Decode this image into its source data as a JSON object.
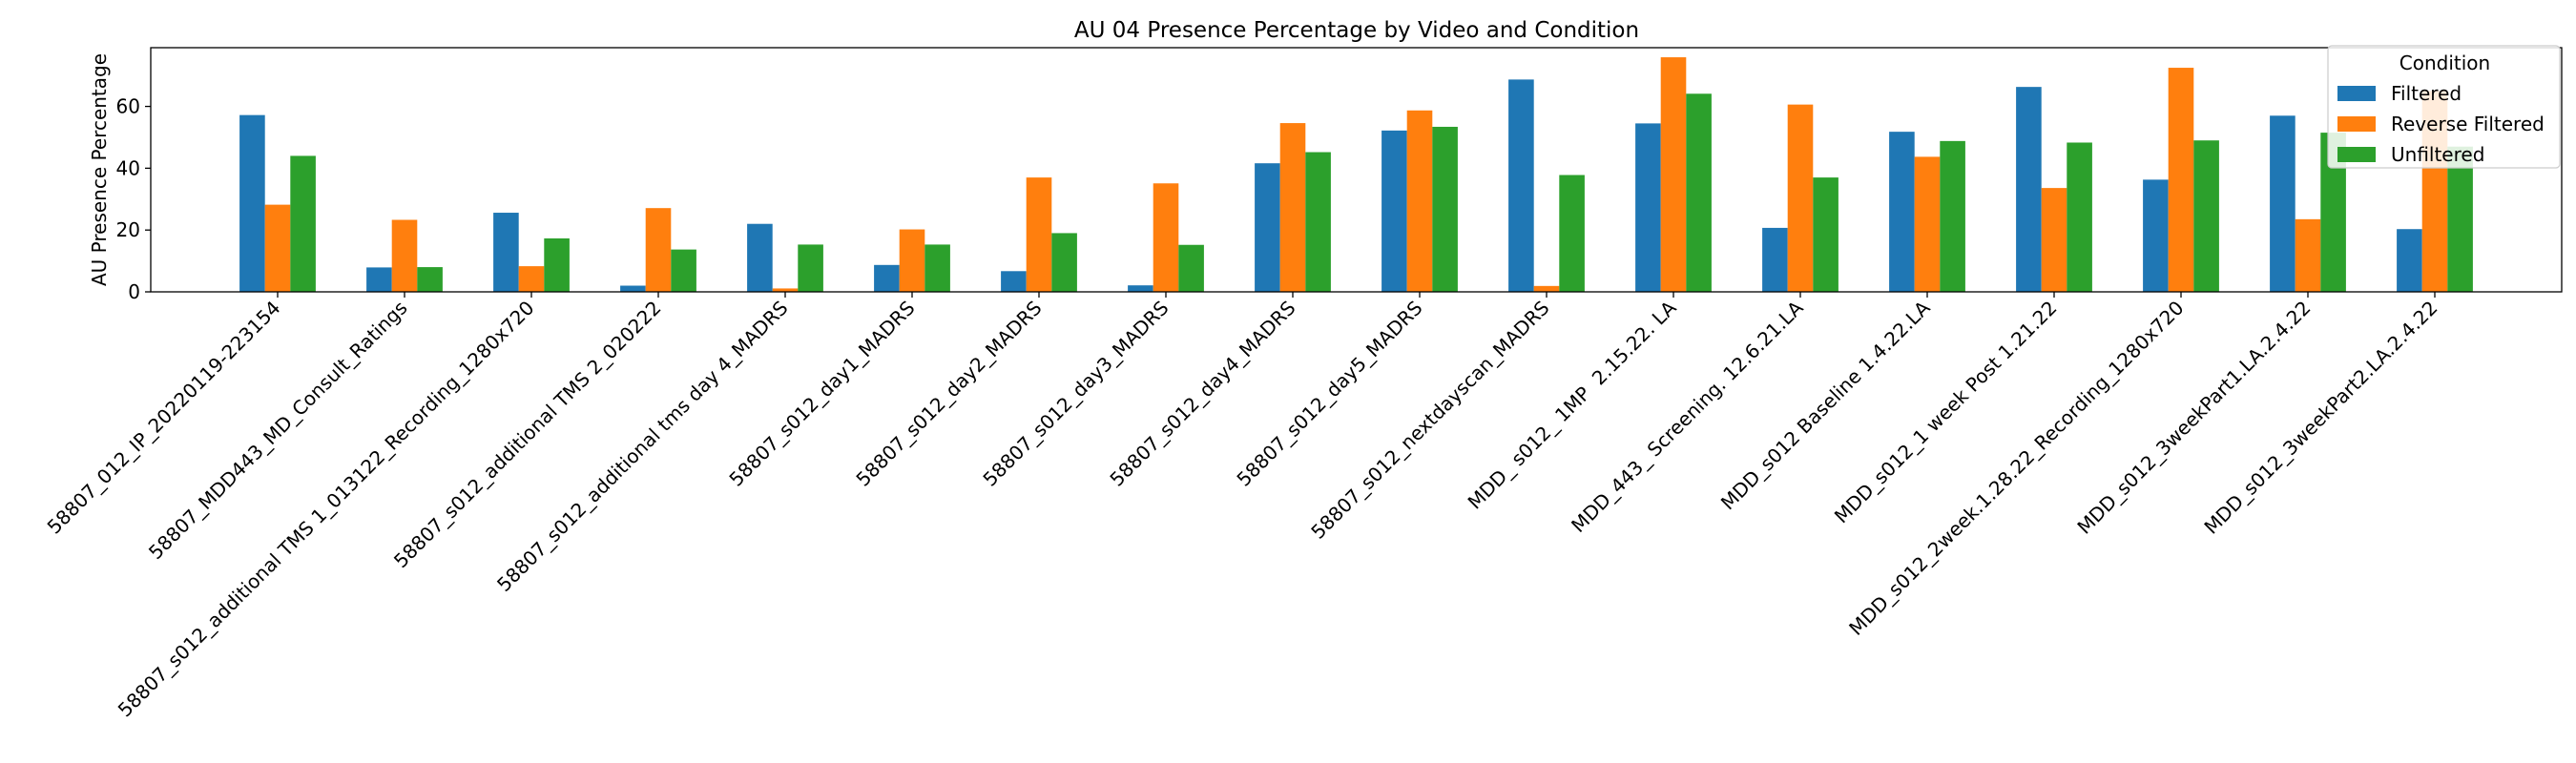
{
  "chart_data": {
    "type": "bar",
    "title": "AU 04 Presence Percentage by Video and Condition",
    "xlabel": "",
    "ylabel": "AU Presence Percentage",
    "ylim": [
      0,
      79
    ],
    "yticks": [
      0,
      20,
      40,
      60
    ],
    "grid": false,
    "legend": {
      "title": "Condition",
      "placement": "top-right"
    },
    "categories": [
      "58807_012_IP_20220119-223154",
      "58807_MDD443_MD_Consult_Ratings",
      "58807_s012_additional TMS 1_013122_Recording_1280x720",
      "58807_s012_additional TMS 2_020222",
      "58807_s012_additional tms day 4_MADRS",
      "58807_s012_day1_MADRS",
      "58807_s012_day2_MADRS",
      "58807_s012_day3_MADRS",
      "58807_s012_day4_MADRS",
      "58807_s012_day5_MADRS",
      "58807_s012_nextdayscan_MADRS",
      "MDD_ s012_ 1MP  2.15.22. LA",
      "MDD_443_ Screening. 12.6.21.LA",
      "MDD_s012 Baseline 1.4.22.LA",
      "MDD_s012_1 week Post 1.21.22",
      "MDD_s012_2week.1.28.22_Recording_1280x720",
      "MDD_s012_3weekPart1.LA.2.4.22",
      "MDD_s012_3weekPart2.LA.2.4.22"
    ],
    "series": [
      {
        "name": "Filtered",
        "color": "#1f77b4",
        "values": [
          57.2,
          7.9,
          25.6,
          2.0,
          22.0,
          8.7,
          6.7,
          2.1,
          41.6,
          52.2,
          68.7,
          54.5,
          20.7,
          51.8,
          66.3,
          36.3,
          57.0,
          20.3
        ]
      },
      {
        "name": "Reverse Filtered",
        "color": "#ff7f0e",
        "values": [
          28.2,
          23.3,
          8.3,
          27.1,
          1.1,
          20.2,
          37.0,
          35.1,
          54.6,
          58.7,
          1.9,
          75.9,
          60.6,
          43.7,
          33.6,
          72.5,
          23.5,
          65.0
        ]
      },
      {
        "name": "Unfiltered",
        "color": "#2ca02c",
        "values": [
          44.0,
          8.0,
          17.3,
          13.7,
          15.3,
          15.3,
          19.0,
          15.2,
          45.2,
          53.4,
          37.8,
          64.1,
          37.0,
          48.8,
          48.3,
          49.0,
          51.5,
          47.0
        ]
      }
    ]
  }
}
